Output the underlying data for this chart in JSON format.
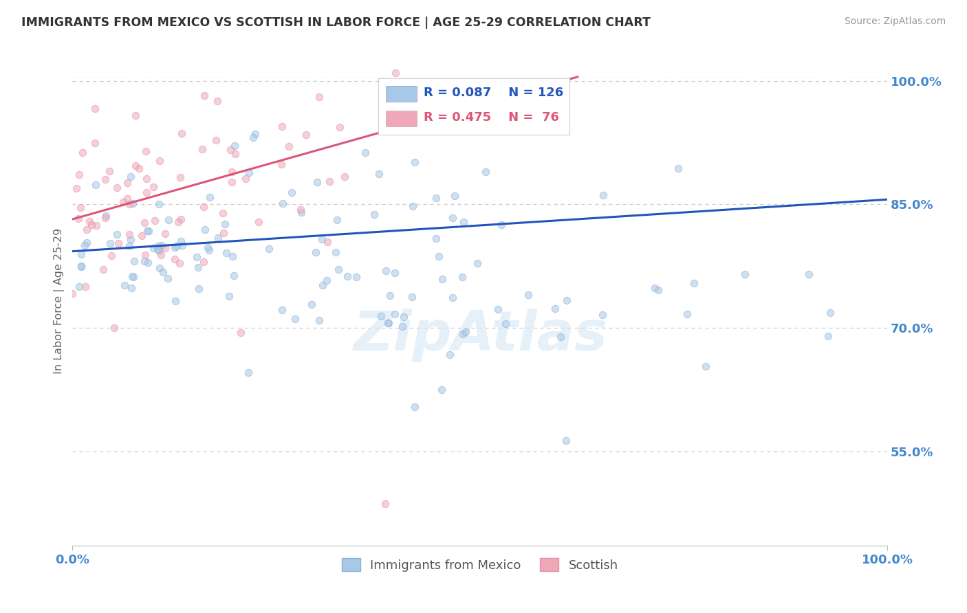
{
  "title": "IMMIGRANTS FROM MEXICO VS SCOTTISH IN LABOR FORCE | AGE 25-29 CORRELATION CHART",
  "source": "Source: ZipAtlas.com",
  "ylabel": "In Labor Force | Age 25-29",
  "xlim": [
    0.0,
    1.0
  ],
  "ylim": [
    0.435,
    1.03
  ],
  "legend_blue_label": "Immigrants from Mexico",
  "legend_pink_label": "Scottish",
  "r_blue": 0.087,
  "n_blue": 126,
  "r_pink": 0.475,
  "n_pink": 76,
  "blue_color": "#a8c8e8",
  "pink_color": "#f0a8b8",
  "blue_edge_color": "#85afd4",
  "pink_edge_color": "#e090a8",
  "blue_line_color": "#2255bb",
  "pink_line_color": "#dd5577",
  "watermark_color": "#d0e4f4",
  "background_color": "#ffffff",
  "grid_color": "#cccccc",
  "title_color": "#333333",
  "tick_label_color": "#4488cc",
  "ytick_positions": [
    0.55,
    0.7,
    0.85,
    1.0
  ],
  "ytick_labels": [
    "55.0%",
    "70.0%",
    "85.0%",
    "100.0%"
  ],
  "blue_trend_y0": 0.793,
  "blue_trend_y1": 0.856,
  "pink_trend_x0": 0.0,
  "pink_trend_x1": 0.62,
  "pink_trend_y0": 0.832,
  "pink_trend_y1": 1.005,
  "dot_size": 55,
  "dot_alpha": 0.55
}
